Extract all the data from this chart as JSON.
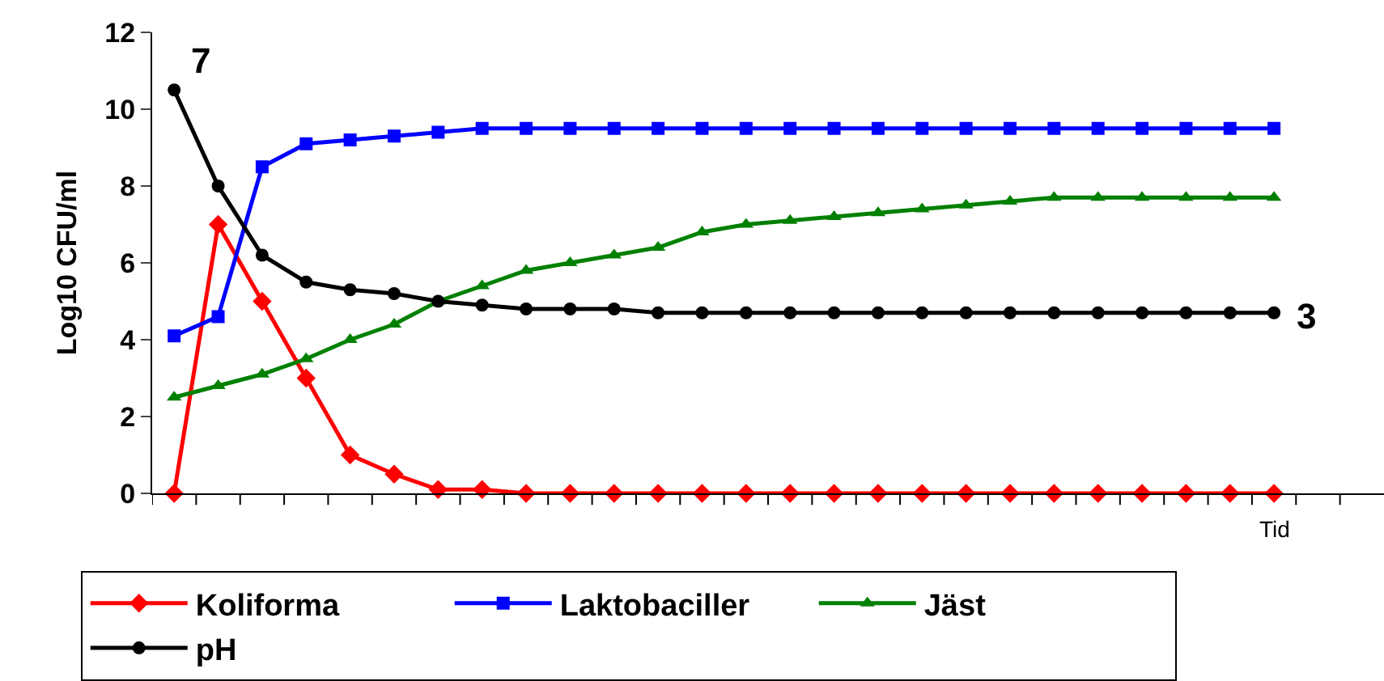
{
  "chart_data": {
    "type": "line",
    "xlabel": "Tid",
    "ylabel": "Log10 CFU/ml",
    "categories": [
      null,
      null,
      null,
      null,
      null,
      null,
      null,
      null,
      null,
      null,
      null,
      null,
      null,
      null,
      null,
      null,
      null,
      null,
      null,
      null,
      null,
      null,
      null,
      null,
      null,
      null,
      null,
      null
    ],
    "series": [
      {
        "name": "Koliforma",
        "color": "#ff0000",
        "marker": "diamond",
        "values": [
          0,
          7,
          5,
          3,
          1,
          0.5,
          0.1,
          0.1,
          0,
          0,
          0,
          0,
          0,
          0,
          0,
          0,
          0,
          0,
          0,
          0,
          0,
          0,
          0,
          0,
          0,
          0,
          null,
          null
        ]
      },
      {
        "name": "Laktobaciller",
        "color": "#0000ff",
        "marker": "square",
        "values": [
          4.1,
          4.6,
          8.5,
          9.1,
          9.2,
          9.3,
          9.4,
          9.5,
          9.5,
          9.5,
          9.5,
          9.5,
          9.5,
          9.5,
          9.5,
          9.5,
          9.5,
          9.5,
          9.5,
          9.5,
          9.5,
          9.5,
          9.5,
          9.5,
          9.5,
          9.5,
          null,
          null
        ]
      },
      {
        "name": "Jäst",
        "color": "#008000",
        "marker": "triangle",
        "values": [
          2.5,
          2.8,
          3.1,
          3.5,
          4.0,
          4.4,
          5.0,
          5.4,
          5.8,
          6.0,
          6.2,
          6.4,
          6.8,
          7.0,
          7.1,
          7.2,
          7.3,
          7.4,
          7.5,
          7.6,
          7.7,
          7.7,
          7.7,
          7.7,
          7.7,
          7.7,
          null,
          null
        ]
      },
      {
        "name": "pH",
        "color": "#000000",
        "marker": "circle",
        "values": [
          10.5,
          8.0,
          6.2,
          5.5,
          5.3,
          5.2,
          5.0,
          4.9,
          4.8,
          4.8,
          4.8,
          4.7,
          4.7,
          4.7,
          4.7,
          4.7,
          4.7,
          4.7,
          4.7,
          4.7,
          4.7,
          4.7,
          4.7,
          4.7,
          4.7,
          4.7,
          null,
          null
        ]
      }
    ],
    "annotations": [
      "7",
      "3"
    ],
    "ylim": [
      0,
      12
    ],
    "yticks": [
      0,
      2,
      4,
      6,
      8,
      10,
      12
    ],
    "grid": false,
    "legend": "bottom",
    "tick_labels": "y",
    "line_style": "solid"
  }
}
